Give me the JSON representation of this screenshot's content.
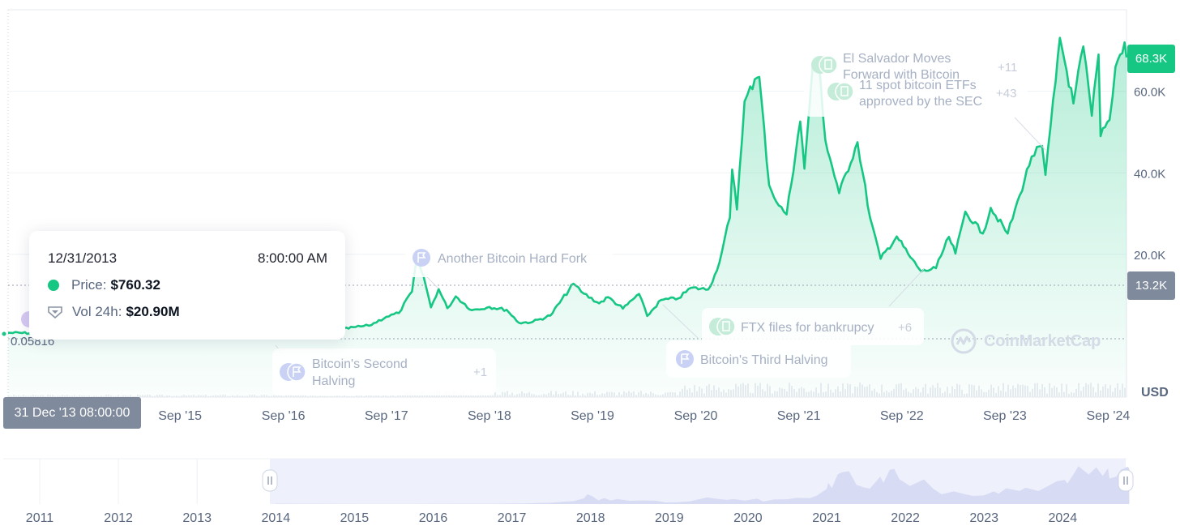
{
  "chart_data": {
    "type": "line",
    "title": "",
    "currency": "USD",
    "y_ticks": [
      "20.0K",
      "40.0K",
      "60.0K"
    ],
    "y_tick_values": [
      20000,
      40000,
      60000
    ],
    "ylim": [
      -15000,
      80000
    ],
    "x_ticks": [
      "Sep '15",
      "Sep '16",
      "Sep '17",
      "Sep '18",
      "Sep '19",
      "Sep '20",
      "Sep '21",
      "Sep '22",
      "Sep '23",
      "Sep '24"
    ],
    "x_tick_dates": [
      "2015-09",
      "2016-09",
      "2017-09",
      "2018-09",
      "2019-09",
      "2020-09",
      "2021-09",
      "2022-09",
      "2023-09",
      "2024-09"
    ],
    "series": [
      {
        "color": "#16c784",
        "points": [
          [
            "2013-12-31",
            760
          ],
          [
            "2014-06-01",
            640
          ],
          [
            "2015-01-15",
            210
          ],
          [
            "2015-09-01",
            230
          ],
          [
            "2016-01-01",
            430
          ],
          [
            "2016-06-15",
            700
          ],
          [
            "2016-10-01",
            610
          ],
          [
            "2017-01-01",
            1000
          ],
          [
            "2017-03-01",
            1200
          ],
          [
            "2017-05-15",
            2200
          ],
          [
            "2017-07-01",
            2500
          ],
          [
            "2017-09-01",
            4700
          ],
          [
            "2017-10-15",
            5600
          ],
          [
            "2017-12-01",
            10900
          ],
          [
            "2017-12-17",
            18900
          ],
          [
            "2018-01-10",
            14800
          ],
          [
            "2018-02-06",
            7000
          ],
          [
            "2018-03-05",
            11500
          ],
          [
            "2018-04-05",
            6800
          ],
          [
            "2018-05-05",
            9700
          ],
          [
            "2018-07-01",
            6300
          ],
          [
            "2018-09-01",
            7100
          ],
          [
            "2018-11-01",
            6400
          ],
          [
            "2018-12-15",
            3200
          ],
          [
            "2019-02-01",
            3450
          ],
          [
            "2019-04-05",
            5000
          ],
          [
            "2019-06-26",
            12800
          ],
          [
            "2019-08-01",
            10400
          ],
          [
            "2019-09-25",
            8000
          ],
          [
            "2019-10-27",
            9500
          ],
          [
            "2019-12-18",
            6700
          ],
          [
            "2020-02-13",
            10300
          ],
          [
            "2020-03-13",
            4900
          ],
          [
            "2020-05-01",
            8800
          ],
          [
            "2020-07-01",
            9200
          ],
          [
            "2020-08-15",
            11800
          ],
          [
            "2020-10-15",
            11400
          ],
          [
            "2020-11-15",
            16000
          ],
          [
            "2020-12-31",
            29000
          ],
          [
            "2021-01-08",
            40800
          ],
          [
            "2021-01-25",
            31000
          ],
          [
            "2021-02-21",
            57500
          ],
          [
            "2021-03-13",
            61200
          ],
          [
            "2021-04-14",
            63500
          ],
          [
            "2021-05-19",
            37000
          ],
          [
            "2021-06-22",
            32000
          ],
          [
            "2021-07-20",
            29800
          ],
          [
            "2021-09-06",
            52600
          ],
          [
            "2021-09-21",
            41000
          ],
          [
            "2021-10-20",
            66000
          ],
          [
            "2021-11-10",
            68000
          ],
          [
            "2021-12-04",
            48000
          ],
          [
            "2022-01-22",
            35000
          ],
          [
            "2022-03-28",
            47500
          ],
          [
            "2022-05-12",
            28900
          ],
          [
            "2022-06-18",
            18900
          ],
          [
            "2022-08-14",
            24400
          ],
          [
            "2022-10-01",
            19300
          ],
          [
            "2022-11-09",
            15800
          ],
          [
            "2022-12-31",
            16600
          ],
          [
            "2023-02-15",
            24300
          ],
          [
            "2023-03-10",
            20200
          ],
          [
            "2023-04-14",
            30500
          ],
          [
            "2023-06-15",
            25100
          ],
          [
            "2023-07-13",
            31400
          ],
          [
            "2023-09-11",
            25100
          ],
          [
            "2023-10-24",
            34500
          ],
          [
            "2023-12-05",
            44000
          ],
          [
            "2024-01-11",
            46600
          ],
          [
            "2024-01-23",
            39500
          ],
          [
            "2024-02-28",
            62500
          ],
          [
            "2024-03-14",
            73100
          ],
          [
            "2024-05-01",
            57000
          ],
          [
            "2024-06-05",
            71000
          ],
          [
            "2024-07-05",
            54000
          ],
          [
            "2024-07-29",
            69000
          ],
          [
            "2024-08-05",
            49000
          ],
          [
            "2024-09-06",
            53000
          ],
          [
            "2024-09-27",
            66000
          ],
          [
            "2024-10-29",
            72000
          ],
          [
            "2024-11-05",
            68300
          ]
        ]
      }
    ],
    "current_price_label": "68.3K",
    "crosshair_price_label": "13.2K",
    "crosshair_x_label": "31 Dec '13 08:00:00",
    "start_value_label": "0.05816",
    "legend": "none",
    "grid": "horizontal"
  },
  "tooltip": {
    "date": "12/31/2013",
    "time": "8:00:00 AM",
    "price_label": "Price:",
    "price_value": "$760.32",
    "volume_label": "Vol 24h:",
    "volume_value": "$20.90M"
  },
  "events": [
    {
      "title": "Another Bitcoin Hard Fork",
      "count": ""
    },
    {
      "title": "Bitcoin's Second",
      "title2": "Halving",
      "count": "+1"
    },
    {
      "title": "Bitcoin's Third Halving",
      "count": ""
    },
    {
      "title": "FTX files for bankrupcy",
      "count": "+6"
    },
    {
      "title": "El Salvador Moves",
      "title2": "Forward with Bitcoin",
      "count": "+11"
    },
    {
      "title": "11 spot bitcoin ETFs",
      "title2": "approved by the SEC",
      "count": "+43"
    }
  ],
  "navigator": {
    "years": [
      "2011",
      "2012",
      "2013",
      "2014",
      "2015",
      "2016",
      "2017",
      "2018",
      "2019",
      "2020",
      "2021",
      "2022",
      "2023",
      "2024"
    ]
  },
  "watermark": "CoinMarketCap",
  "colors": {
    "up": "#16c784",
    "neutral_badge": "#7f8a9c",
    "grid": "#eff2f5",
    "text": "#58667e"
  }
}
